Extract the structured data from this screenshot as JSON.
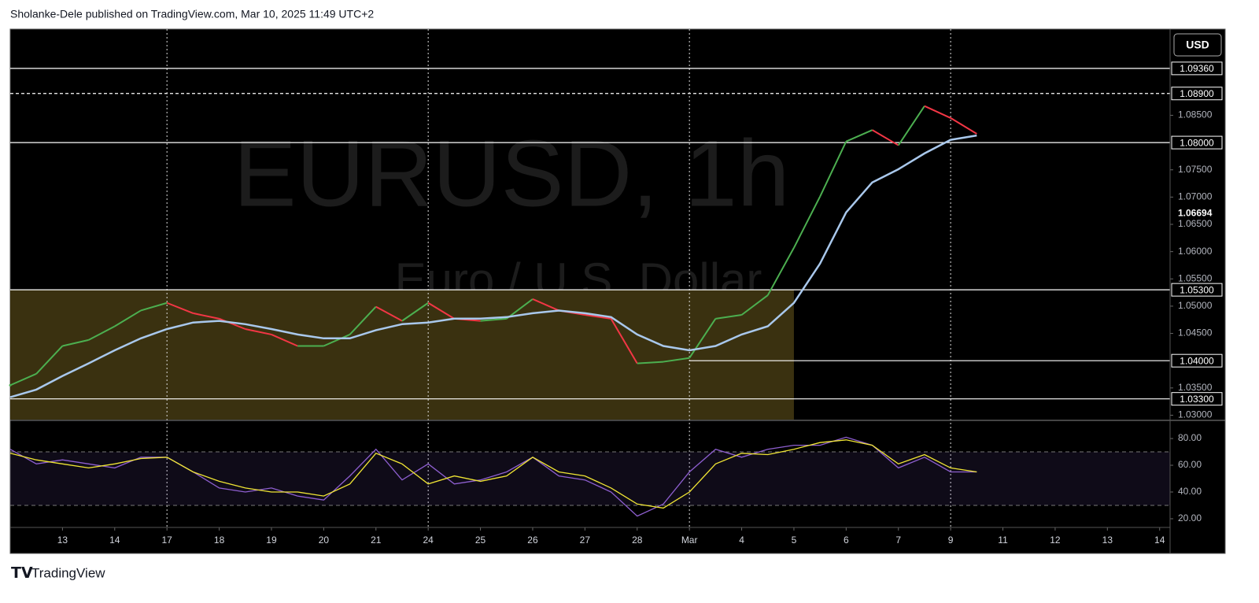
{
  "header": "Sholanke-Dele published on TradingView.com, Mar 10, 2025 11:49 UTC+2",
  "footer": "TradingView",
  "currency_button": "USD",
  "watermark": {
    "symbol": "EURUSD, 1h",
    "description": "Euro / U.S. Dollar"
  },
  "chart_data": [
    {
      "type": "line",
      "pane": "price",
      "x": [
        0,
        0.5,
        1,
        1.5,
        2,
        2.5,
        3,
        3.5,
        4,
        4.5,
        5,
        5.5,
        6,
        6.5,
        7,
        7.5,
        8,
        8.5,
        9,
        9.5,
        10,
        10.5,
        11,
        11.5,
        12,
        12.5,
        13,
        13.5,
        14,
        14.5,
        15,
        15.5,
        16,
        16.5,
        17,
        17.5,
        18,
        18.5
      ],
      "series": [
        {
          "name": "EURUSD",
          "up_color": "#4caf50",
          "down_color": "#f23645",
          "values": [
            1.0355,
            1.0376,
            1.0427,
            1.0438,
            1.0463,
            1.0492,
            1.0506,
            1.0487,
            1.0477,
            1.0458,
            1.0448,
            1.0427,
            1.0427,
            1.0448,
            1.0499,
            1.0473,
            1.0506,
            1.0477,
            1.0473,
            1.0477,
            1.0513,
            1.0492,
            1.0484,
            1.0477,
            1.0395,
            1.0398,
            1.0405,
            1.0477,
            1.0484,
            1.052,
            1.0607,
            1.0701,
            1.0802,
            1.0823,
            1.0795,
            1.0867,
            1.0845,
            1.0816
          ]
        },
        {
          "name": "MA",
          "color": "#a9c8ec",
          "values": [
            1.0333,
            1.0347,
            1.0372,
            1.0395,
            1.0419,
            1.0441,
            1.0458,
            1.047,
            1.0473,
            1.0467,
            1.0458,
            1.0448,
            1.0441,
            1.0441,
            1.0456,
            1.0467,
            1.047,
            1.0477,
            1.0477,
            1.048,
            1.0487,
            1.0492,
            1.0487,
            1.048,
            1.0448,
            1.0427,
            1.0419,
            1.0427,
            1.0448,
            1.0463,
            1.0506,
            1.0578,
            1.0672,
            1.0727,
            1.0751,
            1.078,
            1.0805,
            1.0813
          ]
        }
      ],
      "xlim": [
        0,
        22.2
      ],
      "xticks": [
        {
          "value": 1,
          "label": "13"
        },
        {
          "value": 2,
          "label": "14"
        },
        {
          "value": 3,
          "label": "17"
        },
        {
          "value": 4,
          "label": "18"
        },
        {
          "value": 5,
          "label": "19"
        },
        {
          "value": 6,
          "label": "20"
        },
        {
          "value": 7,
          "label": "21"
        },
        {
          "value": 8,
          "label": "24"
        },
        {
          "value": 9,
          "label": "25"
        },
        {
          "value": 10,
          "label": "26"
        },
        {
          "value": 11,
          "label": "27"
        },
        {
          "value": 12,
          "label": "28"
        },
        {
          "value": 13,
          "label": "Mar"
        },
        {
          "value": 14,
          "label": "4"
        },
        {
          "value": 15,
          "label": "5"
        },
        {
          "value": 16,
          "label": "6"
        },
        {
          "value": 17,
          "label": "7"
        },
        {
          "value": 18,
          "label": "9"
        },
        {
          "value": 19,
          "label": "11"
        },
        {
          "value": 20,
          "label": "12"
        },
        {
          "value": 21,
          "label": "13"
        },
        {
          "value": 22,
          "label": "14"
        }
      ],
      "separators": [
        3,
        8,
        13,
        18
      ],
      "ylim": [
        1.0292,
        1.1008
      ],
      "yticks": [
        {
          "value": 1.03,
          "label": "1.03000"
        },
        {
          "value": 1.035,
          "label": "1.03500"
        },
        {
          "value": 1.045,
          "label": "1.04500"
        },
        {
          "value": 1.05,
          "label": "1.05000"
        },
        {
          "value": 1.055,
          "label": "1.05500"
        },
        {
          "value": 1.06,
          "label": "1.06000"
        },
        {
          "value": 1.065,
          "label": "1.06500"
        },
        {
          "value": 1.07,
          "label": "1.07000"
        },
        {
          "value": 1.075,
          "label": "1.07500"
        },
        {
          "value": 1.085,
          "label": "1.08500"
        }
      ],
      "levels": [
        {
          "value": 1.0936,
          "label": "1.09360",
          "style": "solid",
          "from": 0
        },
        {
          "value": 1.089,
          "label": "1.08900",
          "style": "dashed",
          "from": 0
        },
        {
          "value": 1.08,
          "label": "1.08000",
          "style": "solid",
          "from": 0
        },
        {
          "value": 1.053,
          "label": "1.05300",
          "style": "solid",
          "from": 0
        },
        {
          "value": 1.04,
          "label": "1.04000",
          "style": "solid",
          "from": 13
        },
        {
          "value": 1.033,
          "label": "1.03300",
          "style": "solid",
          "from": 0
        }
      ],
      "zone": {
        "x_end": 15,
        "top": 1.053,
        "color": "#3a3110"
      },
      "price_label": 1.06694
    },
    {
      "type": "line",
      "pane": "rsi",
      "x": [
        0,
        0.5,
        1,
        1.5,
        2,
        2.5,
        3,
        3.5,
        4,
        4.5,
        5,
        5.5,
        6,
        6.5,
        7,
        7.5,
        8,
        8.5,
        9,
        9.5,
        10,
        10.5,
        11,
        11.5,
        12,
        12.5,
        13,
        13.5,
        14,
        14.5,
        15,
        15.5,
        16,
        16.5,
        17,
        17.5,
        18,
        18.5
      ],
      "series": [
        {
          "name": "RSI",
          "color": "#8e5fd0",
          "values": [
            72,
            61,
            64,
            61,
            58,
            66,
            66,
            55,
            43,
            40,
            43,
            37,
            34,
            52,
            72,
            49,
            61,
            46,
            49,
            55,
            66,
            52,
            49,
            40,
            22,
            31,
            55,
            72,
            66,
            72,
            75,
            75,
            81,
            75,
            58,
            66,
            55,
            55
          ]
        },
        {
          "name": "RSI MA",
          "color": "#f0e534",
          "values": [
            69,
            64,
            61,
            58,
            61,
            65,
            66,
            55,
            48,
            43,
            40,
            40,
            37,
            46,
            69,
            61,
            46,
            52,
            48,
            52,
            66,
            55,
            52,
            43,
            31,
            28,
            40,
            61,
            69,
            68,
            72,
            77,
            79,
            75,
            61,
            68,
            58,
            55
          ]
        }
      ],
      "xlim": [
        0,
        22.2
      ],
      "ylim": [
        13.5,
        93
      ],
      "yticks": [
        {
          "value": 20,
          "label": "20.00"
        },
        {
          "value": 40,
          "label": "40.00"
        },
        {
          "value": 60,
          "label": "60.00"
        },
        {
          "value": 80,
          "label": "80.00"
        }
      ],
      "bands": [
        70,
        30
      ]
    }
  ]
}
